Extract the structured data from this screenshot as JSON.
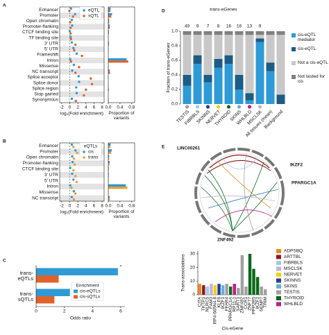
{
  "chart_data": [
    {
      "type": "dot",
      "panel": "A",
      "categories": [
        "Enhancer",
        "Promoter",
        "Open chromatin",
        "Promoter-flanking",
        "CTCF binding site",
        "TF binding site",
        "3' UTR",
        "5' UTR",
        "Frameshift",
        "Intron",
        "Missense",
        "NC transcript",
        "Splice acceptor",
        "Splice donor",
        "Splice region",
        "Stop gained",
        "Synonymous"
      ],
      "series": [
        {
          "name": "eQTL",
          "color": "#2e9ad6",
          "values": [
            0.3,
            1.3,
            0.5,
            0.6,
            0.0,
            0.2,
            0.5,
            0.9,
            1.7,
            0.1,
            1.0,
            0.6,
            2.2,
            2.3,
            1.6,
            1.7,
            0.5
          ]
        },
        {
          "name": "sQTL",
          "color": "#e0622a",
          "values": [
            -0.1,
            0.8,
            0.1,
            0.2,
            0.2,
            0.3,
            1.4,
            1.1,
            3.0,
            0.3,
            2.3,
            1.4,
            5.2,
            5.5,
            4.0,
            3.5,
            1.5
          ]
        }
      ],
      "xlim": [
        -2.5,
        8.5
      ],
      "xticks": [
        -2,
        0,
        2,
        4,
        6,
        8
      ],
      "xlabel": "log₂(Fold enrichment)",
      "legend": "top right"
    },
    {
      "type": "hbar",
      "series": [
        {
          "color": "#2e9ad6",
          "values": [
            0.08,
            0.13,
            0.03,
            0.05,
            0.02,
            0.01,
            0.02,
            0.01,
            0.002,
            0.62,
            0.01,
            0.05,
            0.001,
            0.001,
            0.01,
            0.001,
            0.01
          ]
        },
        {
          "color": "#e0622a",
          "values": [
            0.07,
            0.1,
            0.03,
            0.05,
            0.02,
            0.01,
            0.02,
            0.01,
            0.002,
            0.68,
            0.01,
            0.06,
            0.003,
            0.004,
            0.02,
            0.001,
            0.01
          ]
        }
      ],
      "xlim": [
        0,
        0.9
      ],
      "xticks": [
        {
          "value": 0,
          "label": "0.0"
        },
        {
          "value": 0.4,
          "label": "0.4"
        },
        {
          "value": 0.8,
          "label": "0.8"
        }
      ],
      "xlabel": "Proportion of variants"
    },
    {
      "type": "dot",
      "panel": "B",
      "categories": [
        "Enhancer",
        "Promoter",
        "Open chromatin",
        "Promoter-flanking",
        "CTCF binding site",
        "3' UTR",
        "5' UTR",
        "Intron",
        "Missense",
        "NC transcript"
      ],
      "legend_title": "eQTLs",
      "series": [
        {
          "name": "cis",
          "color": "#2e9ad6",
          "values": [
            0.5,
            1.4,
            0.6,
            0.7,
            0.1,
            0.6,
            0.9,
            0.1,
            1.0,
            0.5
          ]
        },
        {
          "name": "trans",
          "color": "#e8a030",
          "values": [
            0.9,
            1.8,
            1.0,
            1.2,
            0.9,
            1.4,
            1.7,
            0.4,
            1.4,
            1.0
          ]
        }
      ],
      "xlim": [
        -2.5,
        8.5
      ],
      "xticks": [
        -2,
        0,
        2,
        4,
        6,
        8
      ],
      "xlabel": "log₂(Fold enrichment)",
      "legend": "top right"
    },
    {
      "type": "hbar",
      "series": [
        {
          "color": "#2e9ad6",
          "values": [
            0.08,
            0.12,
            0.03,
            0.05,
            0.02,
            0.02,
            0.01,
            0.6,
            0.01,
            0.05
          ]
        },
        {
          "color": "#e8a030",
          "values": [
            0.07,
            0.1,
            0.03,
            0.04,
            0.02,
            0.02,
            0.01,
            0.65,
            0.01,
            0.05
          ]
        }
      ],
      "xlim": [
        0,
        0.9
      ],
      "xticks": [
        {
          "value": 0,
          "label": "0.0"
        },
        {
          "value": 0.4,
          "label": "0.4"
        },
        {
          "value": 0.8,
          "label": "0.8"
        }
      ],
      "xlabel": "Proportion of variants"
    },
    {
      "type": "hbar",
      "panel": "C",
      "categories": [
        "trans-eQTLs",
        "trans-sQTLs"
      ],
      "legend_title": "Enrichment",
      "series": [
        {
          "name": "cis-eQTLs",
          "color": "#2e9ad6",
          "values": [
            5.8,
            2.4
          ]
        },
        {
          "name": "cis-sQTLs",
          "color": "#e0622a",
          "values": [
            1.6,
            1.3
          ]
        }
      ],
      "annotation": "*",
      "xlim": [
        0,
        6.3
      ],
      "xticks": [
        0,
        2,
        4,
        6
      ],
      "xlabel": "Odds ratio"
    },
    {
      "type": "stacked_bar",
      "panel": "D",
      "title": "trans-eGenes",
      "categories": [
        "TESTIS",
        "FIBRBLS",
        "SKINNS",
        "NERVET",
        "THYROID",
        "SKINS",
        "WHLBLD",
        "MSCLSK",
        "All tissues (mean)",
        "Background"
      ],
      "category_colors": [
        "#a0a0a0",
        "#9ecae9",
        "#1f3fa0",
        "#f5d000",
        "#0b6a1a",
        "#6baed6",
        "#c51b8a",
        "#c5b0d5",
        null,
        null
      ],
      "counts": [
        49,
        9,
        7,
        8,
        16,
        16,
        13,
        9,
        null,
        null
      ],
      "series": [
        {
          "name": "cis-eQTL mediator",
          "color": "#2e9ad6",
          "values": [
            0.25,
            0.55,
            0.3,
            0.5,
            0.55,
            0.2,
            0.05,
            0.85,
            0.45,
            0.0
          ]
        },
        {
          "name": "cis-eQTL",
          "color": "#1d5c85",
          "values": [
            0.15,
            0.12,
            0.1,
            0.12,
            0.12,
            0.2,
            0.1,
            0.05,
            0.12,
            0.13
          ]
        },
        {
          "name": "Not a cis-eQTL",
          "color": "#c8c8c8",
          "values": [
            0.55,
            0.28,
            0.55,
            0.33,
            0.28,
            0.55,
            0.8,
            0.05,
            0.38,
            0.82
          ]
        },
        {
          "name": "Not tested for cis",
          "color": "#808080",
          "values": [
            0.05,
            0.05,
            0.05,
            0.05,
            0.05,
            0.05,
            0.05,
            0.05,
            0.05,
            0.05
          ]
        }
      ],
      "ylim": [
        0,
        1
      ],
      "yticks": [
        {
          "value": 0,
          "label": "0.0"
        },
        {
          "value": 0.2,
          "label": "0.2"
        },
        {
          "value": 0.4,
          "label": "0.4"
        },
        {
          "value": 0.6,
          "label": "0.6"
        },
        {
          "value": 0.8,
          "label": "0.8"
        },
        {
          "value": 1,
          "label": "1.0"
        }
      ],
      "ylabel": "Fraction of trans-eGenes"
    },
    {
      "type": "chord",
      "panel": "E",
      "labels": [
        {
          "text": "LINC00261",
          "color": "#e08a1e"
        },
        {
          "text": "IKZF2",
          "color": "#8b1a1a"
        },
        {
          "text": "PPARGC1A",
          "color": "#2b7bb9"
        },
        {
          "text": "ZNF492",
          "color": "#0b6a1a"
        }
      ]
    },
    {
      "type": "bar",
      "categories": [
        "CITA",
        "TKTP1",
        "NLRC5",
        "FAM3",
        "RP4-665N4.8",
        "KLF6",
        "IKZF1",
        "FFAR4",
        "PPARGC1A",
        "RP11-1",
        "SART1",
        "ZNF492",
        "CCR1",
        "ZNF77",
        "PPP2R5",
        "IKZF2",
        "SENP7",
        "TRIM"
      ],
      "values": [
        8,
        7,
        6,
        8,
        7,
        8,
        7,
        8,
        6,
        8,
        5,
        29,
        6,
        30,
        19,
        13,
        6,
        4
      ],
      "colors": [
        "#f08a24",
        "#8b1a1a",
        "#9ecae9",
        "#c5b0d5",
        "#f5d000",
        "#1f3fa0",
        "#6baed6",
        "#a0a0a0",
        "#0b6a1a",
        "#c51b8a",
        "#a0a0a0",
        "#a0a0a0",
        "#a0a0a0",
        "#0b6a1a",
        "#0b6a1a",
        "#0b6a1a",
        "#a0a0a0",
        "#a0a0a0"
      ],
      "legend": [
        {
          "name": "ADPSBQ",
          "color": "#f08a24"
        },
        {
          "name": "ARTTBL",
          "color": "#8b1a1a"
        },
        {
          "name": "FIBRBLS",
          "color": "#9ecae9"
        },
        {
          "name": "MSCLSK",
          "color": "#c5b0d5"
        },
        {
          "name": "NERVET",
          "color": "#f5d000"
        },
        {
          "name": "SKINNS",
          "color": "#1f3fa0"
        },
        {
          "name": "SKINS",
          "color": "#6baed6"
        },
        {
          "name": "TESTIS",
          "color": "#a0a0a0"
        },
        {
          "name": "THYROID",
          "color": "#0b6a1a"
        },
        {
          "name": "WHLBLD",
          "color": "#c51b8a"
        }
      ],
      "ylim": [
        0,
        32
      ],
      "yticks": [
        0,
        10,
        20,
        30
      ],
      "ylabel": "Trans-associations",
      "xlabel": "Cis-eGene"
    }
  ]
}
